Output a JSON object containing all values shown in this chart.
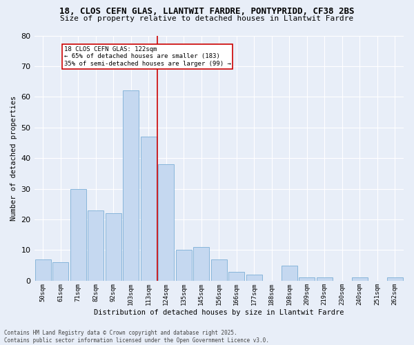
{
  "title_line1": "18, CLOS CEFN GLAS, LLANTWIT FARDRE, PONTYPRIDD, CF38 2BS",
  "title_line2": "Size of property relative to detached houses in Llantwit Fardre",
  "xlabel": "Distribution of detached houses by size in Llantwit Fardre",
  "ylabel": "Number of detached properties",
  "bar_labels": [
    "50sqm",
    "61sqm",
    "71sqm",
    "82sqm",
    "92sqm",
    "103sqm",
    "113sqm",
    "124sqm",
    "135sqm",
    "145sqm",
    "156sqm",
    "166sqm",
    "177sqm",
    "188sqm",
    "198sqm",
    "209sqm",
    "219sqm",
    "230sqm",
    "240sqm",
    "251sqm",
    "262sqm"
  ],
  "bar_values": [
    7,
    6,
    30,
    23,
    22,
    62,
    47,
    38,
    10,
    11,
    7,
    3,
    2,
    0,
    5,
    1,
    1,
    0,
    1,
    0,
    1
  ],
  "bar_color": "#c5d8f0",
  "bar_edgecolor": "#7aaed6",
  "vline_color": "#cc0000",
  "annotation_text": "18 CLOS CEFN GLAS: 122sqm\n← 65% of detached houses are smaller (183)\n35% of semi-detached houses are larger (99) →",
  "annotation_box_edgecolor": "#cc0000",
  "ylim": [
    0,
    80
  ],
  "yticks": [
    0,
    10,
    20,
    30,
    40,
    50,
    60,
    70,
    80
  ],
  "background_color": "#e8eef8",
  "footer_text": "Contains HM Land Registry data © Crown copyright and database right 2025.\nContains public sector information licensed under the Open Government Licence v3.0.",
  "grid_color": "#ffffff",
  "title_fontsize": 9,
  "subtitle_fontsize": 8,
  "vline_index": 6.5
}
